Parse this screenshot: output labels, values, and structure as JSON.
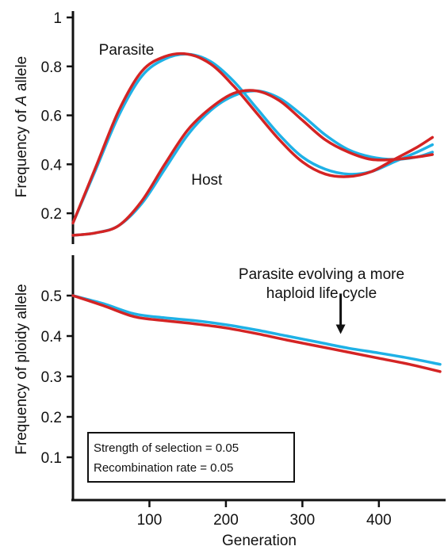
{
  "chart_data": [
    {
      "type": "line",
      "panel": "top",
      "ylabel_prefix": "Frequency of ",
      "ylabel_italic": "A",
      "ylabel_suffix": " allele",
      "xlim": [
        0,
        480
      ],
      "ylim": [
        0.1,
        1.0
      ],
      "yticks": [
        0.2,
        0.4,
        0.6,
        0.8,
        1
      ],
      "yticklabels": [
        "0.2",
        "0.4",
        "0.6",
        "0.8",
        "1"
      ],
      "colors": {
        "blue": "#1fb1e6",
        "red": "#d42424"
      },
      "annotations": [
        {
          "id": "parasite",
          "text": "Parasite",
          "x": 70,
          "y": 0.87
        },
        {
          "id": "host",
          "text": "Host",
          "x": 175,
          "y": 0.34
        }
      ],
      "series": [
        {
          "id": "parasite-blue",
          "color": "blue",
          "x": [
            0,
            30,
            60,
            90,
            120,
            150,
            180,
            210,
            240,
            270,
            300,
            330,
            360,
            390,
            420,
            450,
            470
          ],
          "y": [
            0.16,
            0.38,
            0.6,
            0.76,
            0.83,
            0.85,
            0.82,
            0.74,
            0.63,
            0.52,
            0.43,
            0.38,
            0.36,
            0.37,
            0.41,
            0.45,
            0.48
          ]
        },
        {
          "id": "parasite-red",
          "color": "red",
          "x": [
            0,
            30,
            60,
            90,
            120,
            150,
            180,
            210,
            240,
            270,
            300,
            330,
            360,
            390,
            420,
            450,
            470
          ],
          "y": [
            0.16,
            0.39,
            0.62,
            0.78,
            0.84,
            0.85,
            0.81,
            0.72,
            0.61,
            0.5,
            0.41,
            0.36,
            0.35,
            0.37,
            0.42,
            0.47,
            0.51
          ]
        },
        {
          "id": "host-blue",
          "color": "blue",
          "x": [
            0,
            30,
            60,
            90,
            120,
            150,
            180,
            210,
            240,
            270,
            300,
            330,
            360,
            390,
            420,
            450,
            470
          ],
          "y": [
            0.11,
            0.12,
            0.15,
            0.24,
            0.38,
            0.52,
            0.62,
            0.68,
            0.7,
            0.67,
            0.6,
            0.52,
            0.46,
            0.43,
            0.42,
            0.43,
            0.45
          ]
        },
        {
          "id": "host-red",
          "color": "red",
          "x": [
            0,
            30,
            60,
            90,
            120,
            150,
            180,
            210,
            240,
            270,
            300,
            330,
            360,
            390,
            420,
            450,
            470
          ],
          "y": [
            0.11,
            0.12,
            0.15,
            0.25,
            0.4,
            0.54,
            0.63,
            0.69,
            0.7,
            0.66,
            0.58,
            0.5,
            0.45,
            0.42,
            0.42,
            0.43,
            0.44
          ]
        }
      ]
    },
    {
      "type": "line",
      "panel": "bottom",
      "ylabel": "Frequency of ploidy allele",
      "xlabel": "Generation",
      "xlim": [
        0,
        480
      ],
      "ylim": [
        0.0,
        0.6
      ],
      "xticks": [
        100,
        200,
        300,
        400
      ],
      "xticklabels": [
        "100",
        "200",
        "300",
        "400"
      ],
      "yticks": [
        0.1,
        0.2,
        0.3,
        0.4,
        0.5
      ],
      "yticklabels": [
        "0.1",
        "0.2",
        "0.3",
        "0.4",
        "0.5"
      ],
      "colors": {
        "blue": "#1fb1e6",
        "red": "#d42424"
      },
      "arrow_annotation": {
        "lines": [
          "Parasite evolving a more",
          "haploid life cycle"
        ],
        "text_x": 325,
        "text_y": 0.555,
        "arrow_x": 350,
        "arrow_from_y": 0.505,
        "arrow_to_y": 0.405
      },
      "info_box": {
        "lines": [
          "Strength of selection = 0.05",
          "Recombination rate = 0.05"
        ]
      },
      "series": [
        {
          "id": "ploidy-blue",
          "color": "blue",
          "x": [
            0,
            40,
            80,
            120,
            160,
            200,
            240,
            280,
            320,
            360,
            400,
            440,
            480
          ],
          "y": [
            0.5,
            0.48,
            0.455,
            0.445,
            0.438,
            0.428,
            0.415,
            0.4,
            0.385,
            0.37,
            0.358,
            0.345,
            0.33
          ]
        },
        {
          "id": "ploidy-red",
          "color": "red",
          "x": [
            0,
            40,
            80,
            120,
            160,
            200,
            240,
            280,
            320,
            360,
            400,
            440,
            480
          ],
          "y": [
            0.5,
            0.475,
            0.448,
            0.438,
            0.43,
            0.42,
            0.406,
            0.39,
            0.375,
            0.36,
            0.345,
            0.33,
            0.312
          ]
        }
      ]
    }
  ]
}
